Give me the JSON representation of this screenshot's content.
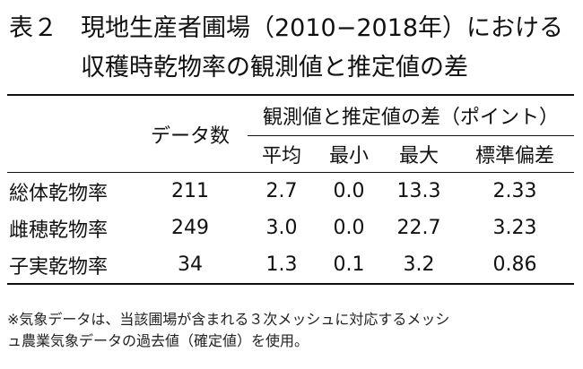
{
  "title": {
    "label": "表２",
    "line1": "現地生産者圃場（2010−2018年）における",
    "line2": "収穫時乾物率の観測値と推定値の差"
  },
  "table": {
    "col_data_count": "データ数",
    "group_header": "観測値と推定値の差（ポイント）",
    "subheaders": [
      "平均",
      "最小",
      "最大",
      "標準偏差"
    ],
    "rows": [
      {
        "name": "総体乾物率",
        "count": "211",
        "mean": "2.7",
        "min": "0.0",
        "max": "13.3",
        "sd": "2.33"
      },
      {
        "name": "雌穂乾物率",
        "count": "249",
        "mean": "3.0",
        "min": "0.0",
        "max": "22.7",
        "sd": "3.23"
      },
      {
        "name": "子実乾物率",
        "count": "34",
        "mean": "1.3",
        "min": "0.1",
        "max": "3.2",
        "sd": "0.86"
      }
    ]
  },
  "note": {
    "line1": "※気象データは、当該圃場が含まれる３次メッシュに対応するメッシ",
    "line2": "ュ農業気象データの過去値（確定値）を使用。"
  }
}
